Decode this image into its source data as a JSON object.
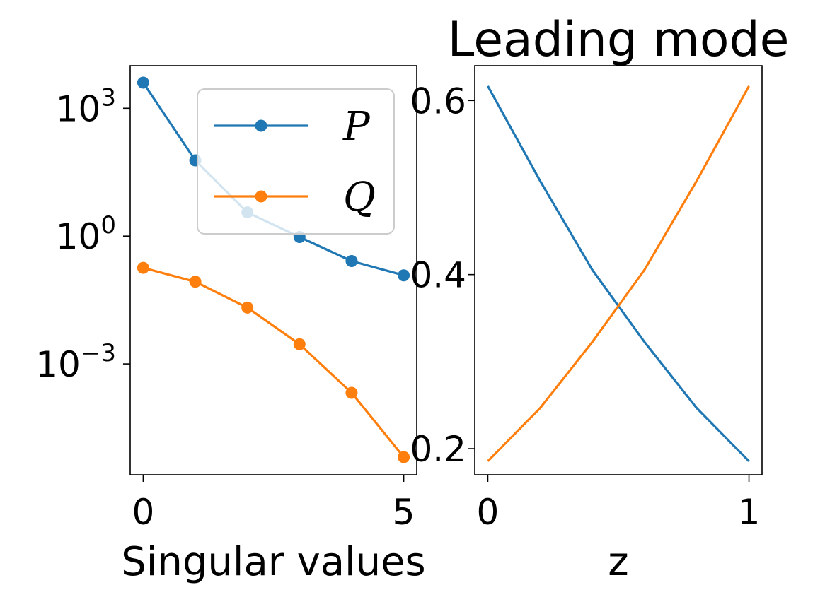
{
  "chart_data": [
    {
      "type": "line",
      "title": "",
      "xlabel": "Singular values",
      "ylabel": "",
      "y_scale": "log",
      "xlim": [
        -0.25,
        5.25
      ],
      "ylim": [
        2.5e-06,
        10000
      ],
      "x_ticks": [
        0,
        5
      ],
      "x_tick_labels": [
        "0",
        "5"
      ],
      "y_ticks": [
        1000,
        1,
        0.001
      ],
      "y_tick_labels": [
        {
          "base": "10",
          "exp": "3"
        },
        {
          "base": "10",
          "exp": "0"
        },
        {
          "base": "10",
          "exp": "−3"
        }
      ],
      "x": [
        0,
        1,
        2,
        3,
        4,
        5
      ],
      "series": [
        {
          "name": "P",
          "color": "#1f77b4",
          "marker": "circle",
          "values": [
            4000,
            60,
            3.6,
            0.95,
            0.26,
            0.12
          ]
        },
        {
          "name": "Q",
          "color": "#ff7f0e",
          "marker": "circle",
          "values": [
            0.18,
            0.085,
            0.021,
            0.0029,
            0.00021,
            6.5e-06
          ]
        }
      ],
      "legend": {
        "position": "top-right",
        "entries": [
          "P",
          "Q"
        ]
      },
      "grid": false
    },
    {
      "type": "line",
      "title": "Leading mode",
      "xlabel": "z",
      "ylabel": "",
      "xlim": [
        -0.05,
        1.05
      ],
      "ylim": [
        0.17,
        0.64
      ],
      "x_ticks": [
        0,
        1
      ],
      "x_tick_labels": [
        "0",
        "1"
      ],
      "y_ticks": [
        0.6,
        0.4,
        0.2
      ],
      "y_tick_labels": [
        "0.6",
        "0.4",
        "0.2"
      ],
      "x": [
        0,
        0.2,
        0.4,
        0.6,
        0.8,
        1.0
      ],
      "series": [
        {
          "color": "#1f77b4",
          "values": [
            0.6165,
            0.5078,
            0.4055,
            0.3225,
            0.2466,
            0.1856
          ]
        },
        {
          "color": "#ff7f0e",
          "values": [
            0.1856,
            0.2466,
            0.3225,
            0.4055,
            0.5078,
            0.6165
          ]
        }
      ],
      "grid": false
    }
  ]
}
